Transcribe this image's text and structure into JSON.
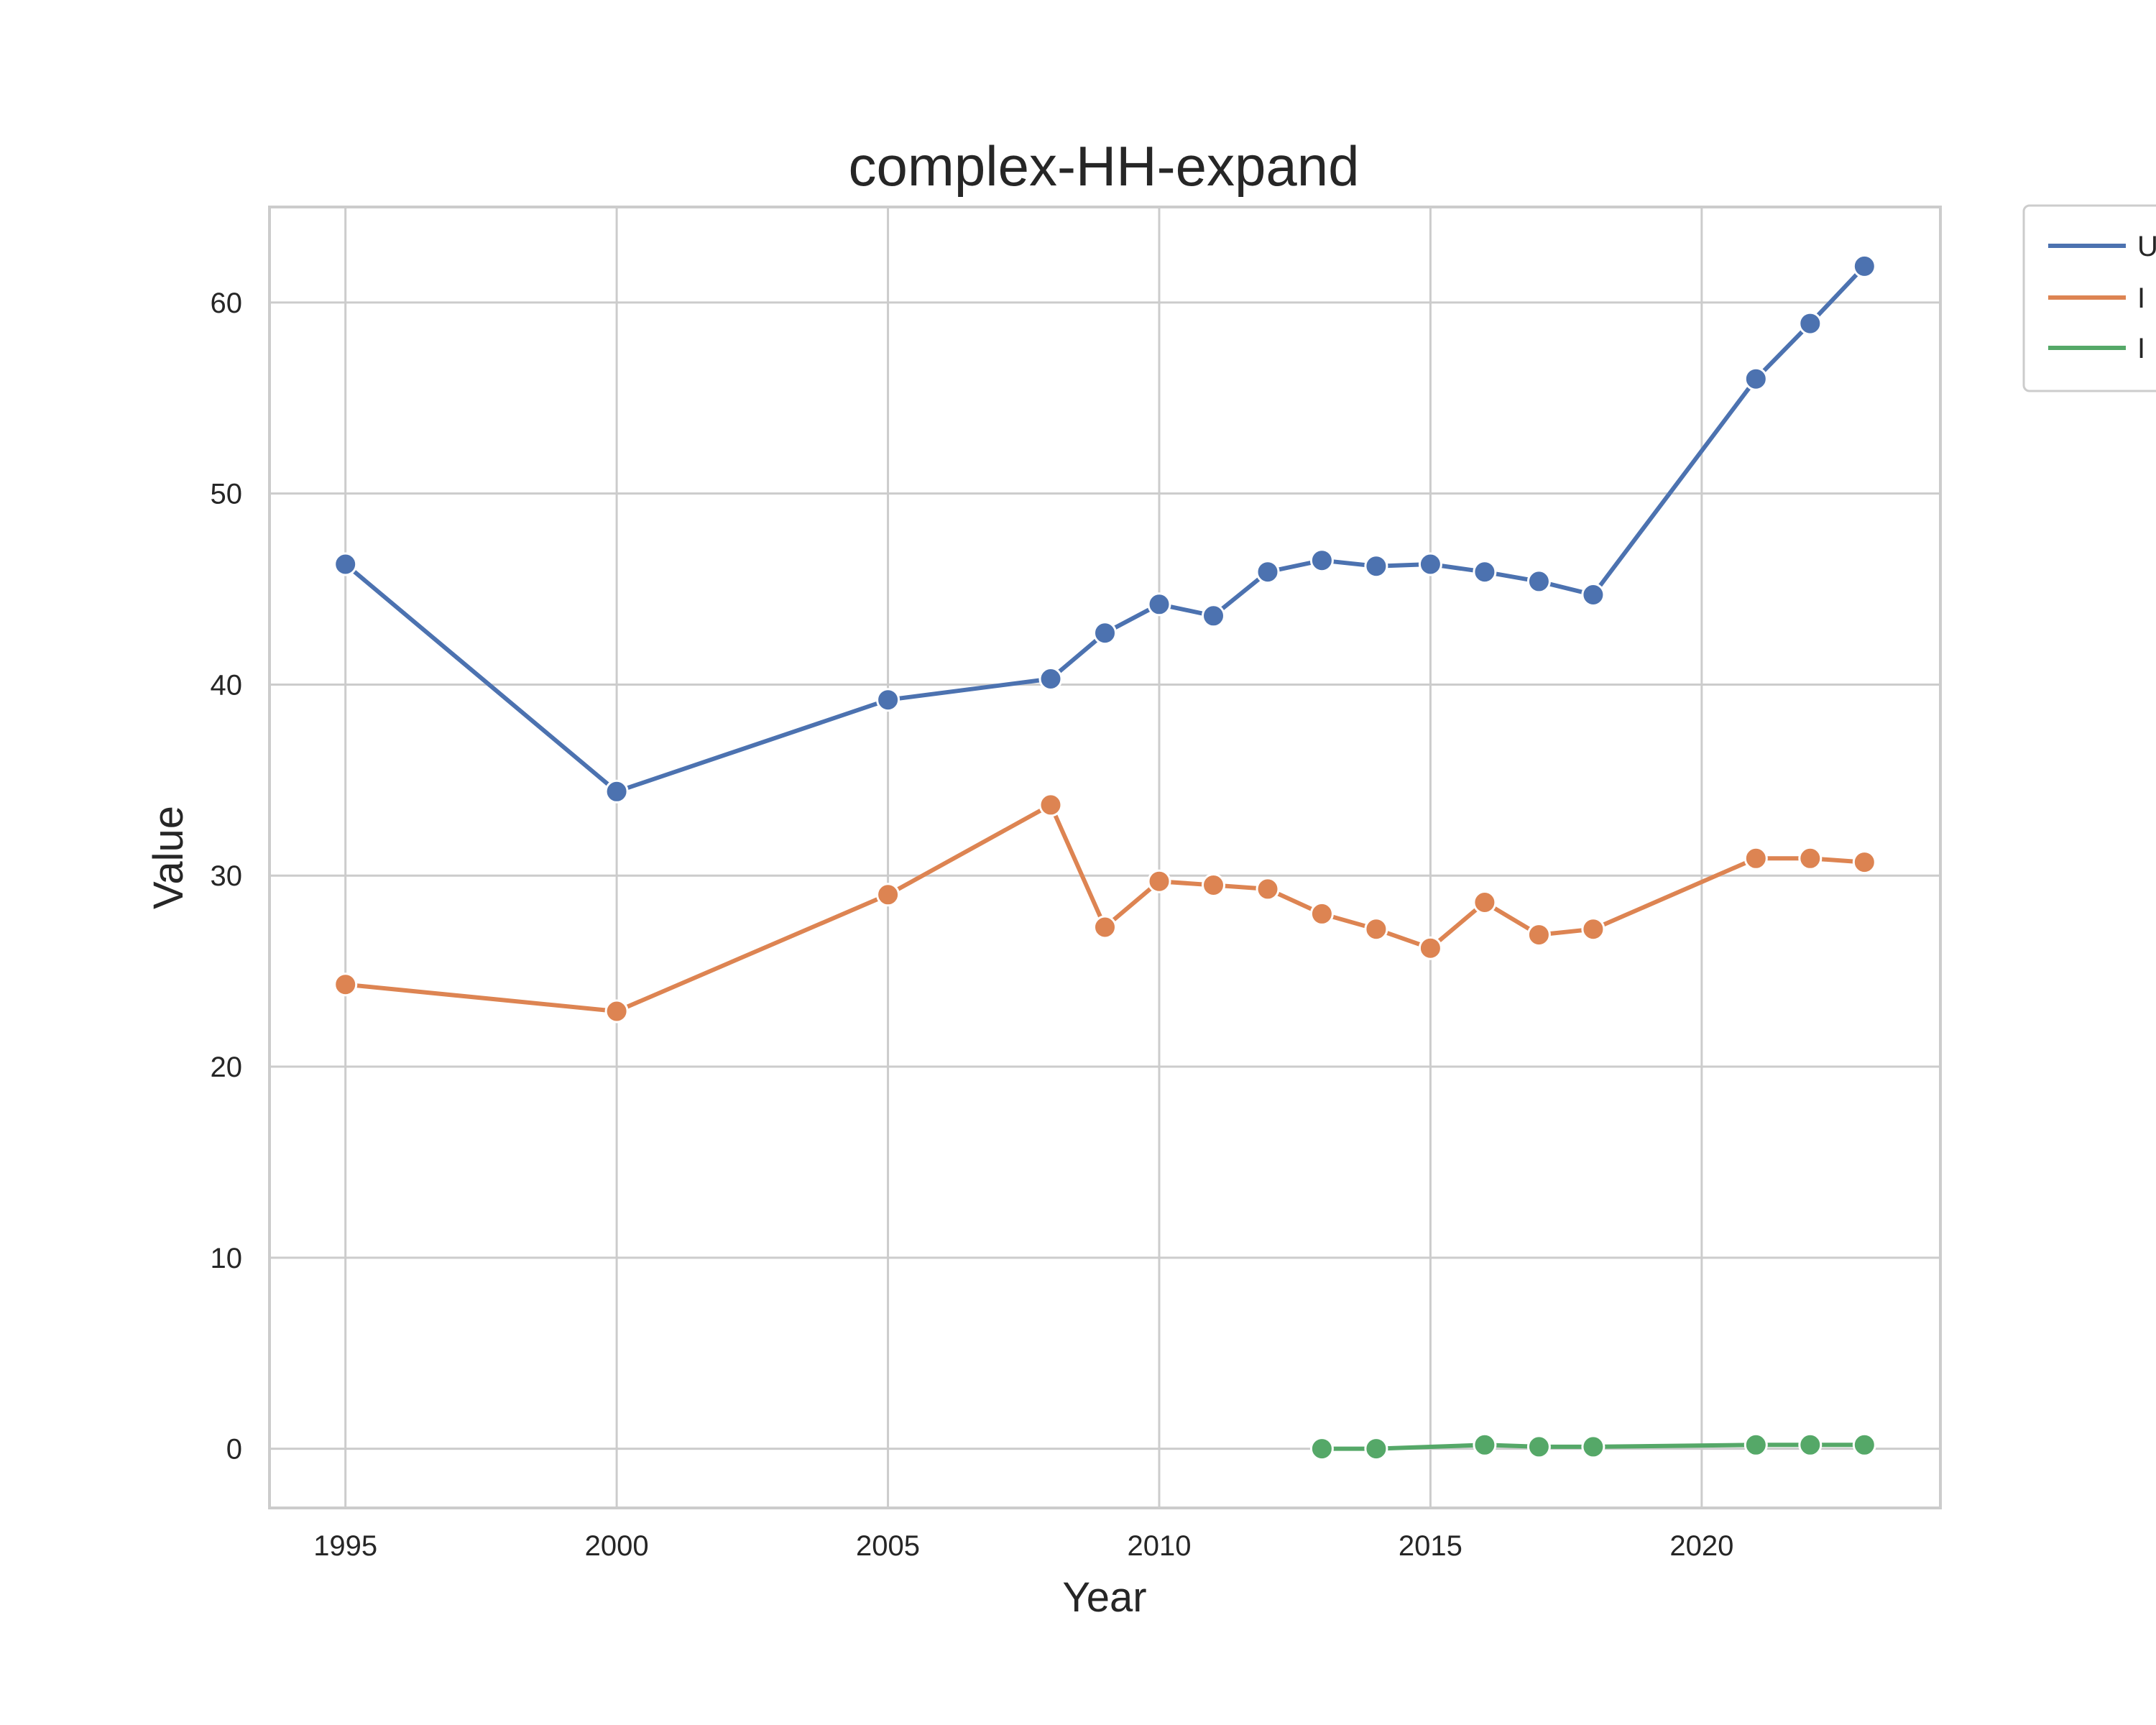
{
  "chart_data": {
    "type": "line",
    "title": "complex-HH-expand",
    "xlabel": "Year",
    "ylabel": "Value",
    "xlim": [
      1993.6,
      2024.4
    ],
    "ylim": [
      -3.1,
      65.0
    ],
    "xticks": [
      1995,
      2000,
      2005,
      2010,
      2015,
      2020
    ],
    "yticks": [
      0,
      10,
      20,
      30,
      40,
      50,
      60
    ],
    "grid": true,
    "legend_position": "outside-top-right",
    "series": [
      {
        "color": "#4c72b0",
        "x": [
          1995,
          2000,
          2005,
          2008,
          2009,
          2010,
          2011,
          2012,
          2013,
          2014,
          2015,
          2016,
          2017,
          2018,
          2021,
          2022,
          2023
        ],
        "y": [
          46.3,
          34.4,
          39.2,
          40.3,
          42.7,
          44.2,
          43.6,
          45.9,
          46.5,
          46.2,
          46.3,
          45.9,
          45.4,
          44.7,
          56.0,
          58.9,
          61.9
        ]
      },
      {
        "color": "#dd8452",
        "x": [
          1995,
          2000,
          2005,
          2008,
          2009,
          2010,
          2011,
          2012,
          2013,
          2014,
          2015,
          2016,
          2017,
          2018,
          2021,
          2022,
          2023
        ],
        "y": [
          24.3,
          22.9,
          29.0,
          33.7,
          27.3,
          29.7,
          29.5,
          29.3,
          28.0,
          27.2,
          26.2,
          28.6,
          26.9,
          27.2,
          30.9,
          30.9,
          30.7
        ]
      },
      {
        "color": "#55a868",
        "x": [
          2013,
          2014,
          2016,
          2017,
          2018,
          2021,
          2022,
          2023
        ],
        "y": [
          0.0,
          0.0,
          0.2,
          0.1,
          0.1,
          0.2,
          0.2,
          0.2
        ]
      }
    ]
  },
  "legend": {
    "entries": [
      {
        "label": "U",
        "color": "#4c72b0"
      },
      {
        "label": "I",
        "color": "#dd8452"
      },
      {
        "label": "I",
        "color": "#55a868"
      }
    ]
  }
}
